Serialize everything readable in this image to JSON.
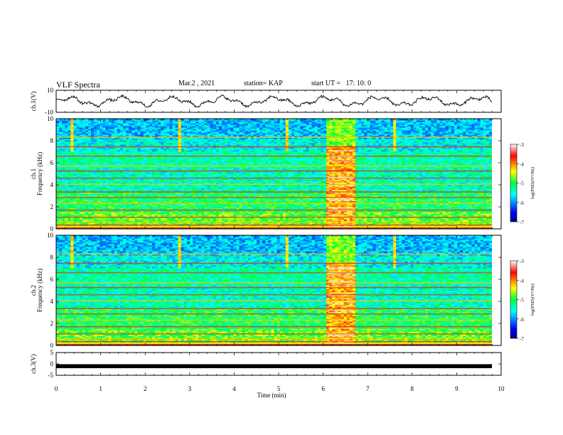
{
  "header": {
    "title": "VLF Spectra",
    "date": "Mar.2 , 2021",
    "station": "station= KAP",
    "start_ut": "start UT =   17: 10: 0"
  },
  "chart_data": [
    {
      "type": "line",
      "ylabel": "ch.1(V)",
      "ylim": [
        -10,
        10
      ],
      "yticks": [
        "10",
        "-10"
      ],
      "xlim": [
        0,
        10
      ],
      "note": "waveform oscillating roughly between -5 and +5 V across the whole interval"
    },
    {
      "type": "heatmap",
      "ylabel_channel": "ch.1",
      "ylabel": "Frequency (kHz)",
      "ylim": [
        0,
        10
      ],
      "yticks": [
        "0",
        "2",
        "4",
        "6",
        "8",
        "10"
      ],
      "xlim": [
        0,
        10
      ],
      "colorbar": {
        "label": "log(PSD)(V²/Hz)",
        "range": [
          -7,
          -3
        ],
        "ticks": [
          "-3",
          "-4",
          "-5",
          "-6",
          "-7"
        ]
      },
      "burst_interval_min": [
        6.1,
        6.7
      ]
    },
    {
      "type": "heatmap",
      "ylabel_channel": "ch.2",
      "ylabel": "Frequency (kHz)",
      "ylim": [
        0,
        10
      ],
      "yticks": [
        "0",
        "2",
        "4",
        "6",
        "8",
        "10"
      ],
      "xlim": [
        0,
        10
      ],
      "colorbar": {
        "label": "log(PSD)(V²/Hz)",
        "range": [
          -7,
          -3
        ],
        "ticks": [
          "-3",
          "-4",
          "-5",
          "-6",
          "-7"
        ]
      },
      "burst_interval_min": [
        6.1,
        6.7
      ]
    },
    {
      "type": "line",
      "ylabel": "ch.3(V)",
      "ylim": [
        -5,
        5
      ],
      "yticks": [
        "5",
        "0",
        "-5"
      ],
      "xlim": [
        0,
        10
      ],
      "value": -1,
      "note": "thick constant band near -1 V"
    }
  ],
  "xaxis": {
    "label": "Time (min)",
    "ticks": [
      "0",
      "1",
      "2",
      "3",
      "4",
      "5",
      "6",
      "7",
      "8",
      "9",
      "10"
    ]
  }
}
